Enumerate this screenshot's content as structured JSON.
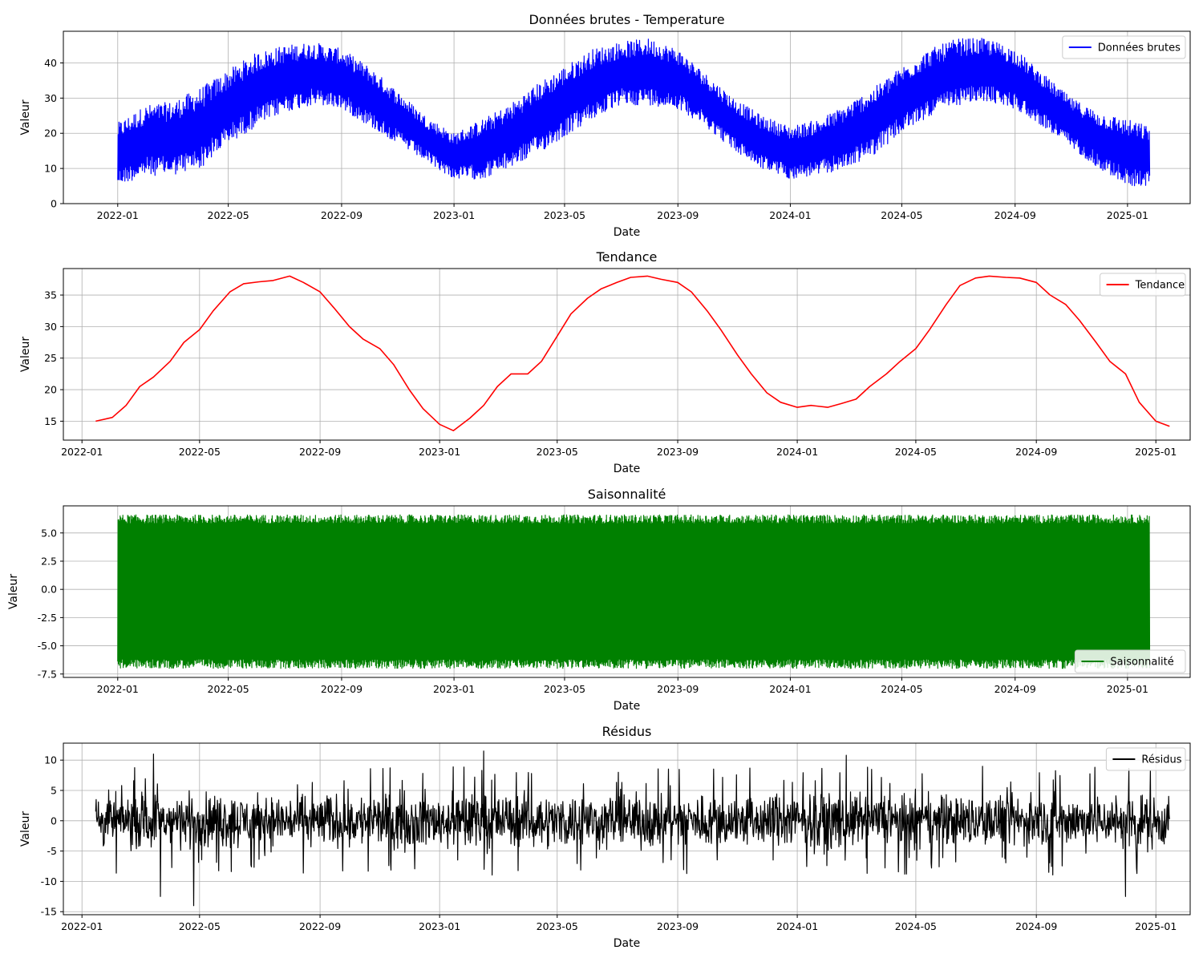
{
  "figure": {
    "background": "#ffffff",
    "grid_color": "#b0b0b0"
  },
  "chart_data": [
    {
      "type": "line",
      "title": "Données brutes - Temperature",
      "xlabel": "Date",
      "ylabel": "Valeur",
      "color": "#0000ff",
      "legend": {
        "label": "Données brutes",
        "placement": "top-right"
      },
      "grid": true,
      "xlim": [
        "2021-11-03",
        "2025-03-10"
      ],
      "ylim": [
        0,
        49
      ],
      "xticks": [
        "2022-01",
        "2022-05",
        "2022-09",
        "2023-01",
        "2023-05",
        "2023-09",
        "2024-01",
        "2024-05",
        "2024-09",
        "2025-01"
      ],
      "yticks": [
        0,
        10,
        20,
        30,
        40
      ],
      "envelope": {
        "dates": [
          "2022-01-01",
          "2022-02-01",
          "2022-03-01",
          "2022-04-01",
          "2022-05-01",
          "2022-06-01",
          "2022-07-01",
          "2022-08-01",
          "2022-09-01",
          "2022-10-01",
          "2022-11-01",
          "2022-12-01",
          "2023-01-01",
          "2023-02-01",
          "2023-03-01",
          "2023-04-01",
          "2023-05-01",
          "2023-06-01",
          "2023-07-01",
          "2023-08-01",
          "2023-09-01",
          "2023-10-01",
          "2023-11-01",
          "2023-12-01",
          "2024-01-01",
          "2024-02-01",
          "2024-03-01",
          "2024-04-01",
          "2024-05-01",
          "2024-06-01",
          "2024-07-01",
          "2024-08-01",
          "2024-09-01",
          "2024-10-01",
          "2024-11-01",
          "2024-12-01",
          "2025-01-01",
          "2025-01-25"
        ],
        "min": [
          5,
          8,
          8,
          10,
          17,
          22,
          26,
          28,
          27,
          22,
          17,
          12,
          7,
          7,
          10,
          14,
          19,
          24,
          28,
          28,
          27,
          22,
          15,
          10,
          7,
          8,
          10,
          14,
          20,
          25,
          28,
          29,
          27,
          22,
          16,
          10,
          5,
          5
        ],
        "max": [
          23,
          28,
          29,
          33,
          38,
          43,
          45,
          46,
          44,
          39,
          32,
          25,
          20,
          24,
          28,
          34,
          39,
          44,
          46,
          47,
          44,
          37,
          30,
          25,
          22,
          24,
          28,
          33,
          39,
          44,
          47,
          47,
          44,
          37,
          30,
          26,
          24,
          22
        ]
      }
    },
    {
      "type": "line",
      "title": "Tendance",
      "xlabel": "Date",
      "ylabel": "Valeur",
      "color": "#ff0000",
      "legend": {
        "label": "Tendance",
        "placement": "top-right"
      },
      "grid": true,
      "xlim": [
        "2021-12-13",
        "2025-02-05"
      ],
      "ylim": [
        12,
        39.2
      ],
      "xticks": [
        "2022-01",
        "2022-05",
        "2022-09",
        "2023-01",
        "2023-05",
        "2023-09",
        "2024-01",
        "2024-05",
        "2024-09",
        "2025-01"
      ],
      "yticks": [
        15,
        20,
        25,
        30,
        35
      ],
      "x": [
        "2022-01-15",
        "2022-02-01",
        "2022-02-15",
        "2022-03-01",
        "2022-03-15",
        "2022-04-01",
        "2022-04-15",
        "2022-05-01",
        "2022-05-15",
        "2022-06-01",
        "2022-06-15",
        "2022-07-01",
        "2022-07-15",
        "2022-08-01",
        "2022-08-15",
        "2022-09-01",
        "2022-09-15",
        "2022-10-01",
        "2022-10-15",
        "2022-11-01",
        "2022-11-15",
        "2022-12-01",
        "2022-12-15",
        "2023-01-01",
        "2023-01-15",
        "2023-02-01",
        "2023-02-15",
        "2023-03-01",
        "2023-03-15",
        "2023-04-01",
        "2023-04-15",
        "2023-05-01",
        "2023-05-15",
        "2023-06-01",
        "2023-06-15",
        "2023-07-01",
        "2023-07-15",
        "2023-08-01",
        "2023-08-15",
        "2023-09-01",
        "2023-09-15",
        "2023-10-01",
        "2023-10-15",
        "2023-11-01",
        "2023-11-15",
        "2023-12-01",
        "2023-12-15",
        "2024-01-01",
        "2024-01-15",
        "2024-02-01",
        "2024-02-15",
        "2024-03-01",
        "2024-03-15",
        "2024-04-01",
        "2024-04-15",
        "2024-05-01",
        "2024-05-15",
        "2024-06-01",
        "2024-06-15",
        "2024-07-01",
        "2024-07-15",
        "2024-08-01",
        "2024-08-15",
        "2024-09-01",
        "2024-09-15",
        "2024-10-01",
        "2024-10-15",
        "2024-11-01",
        "2024-11-15",
        "2024-12-01",
        "2024-12-15",
        "2025-01-01",
        "2025-01-15"
      ],
      "values": [
        15.0,
        15.6,
        17.5,
        20.5,
        22.0,
        24.5,
        27.5,
        29.5,
        32.5,
        35.5,
        36.8,
        37.1,
        37.3,
        38.0,
        37.0,
        35.5,
        33.0,
        30.0,
        28.0,
        26.5,
        24.0,
        20.0,
        17.0,
        14.5,
        13.5,
        15.5,
        17.5,
        20.5,
        22.5,
        22.5,
        24.5,
        28.5,
        32.0,
        34.5,
        36.0,
        37.0,
        37.8,
        38.0,
        37.5,
        37.0,
        35.5,
        32.5,
        29.5,
        25.5,
        22.5,
        19.5,
        18.0,
        17.2,
        17.5,
        17.2,
        17.8,
        18.5,
        20.5,
        22.5,
        24.5,
        26.5,
        29.5,
        33.5,
        36.5,
        37.7,
        38.0,
        37.8,
        37.7,
        37.0,
        35.0,
        33.5,
        31.0,
        27.5,
        24.5,
        22.5,
        18.0,
        15.0,
        14.2
      ]
    },
    {
      "type": "line",
      "title": "Saisonnalité",
      "xlabel": "Date",
      "ylabel": "Valeur",
      "color": "#008000",
      "legend": {
        "label": "Saisonnalité",
        "placement": "bottom-right"
      },
      "grid": true,
      "xlim": [
        "2021-11-03",
        "2025-03-10"
      ],
      "ylim": [
        -7.8,
        7.4
      ],
      "xticks": [
        "2022-01",
        "2022-05",
        "2022-09",
        "2023-01",
        "2023-05",
        "2023-09",
        "2024-01",
        "2024-05",
        "2024-09",
        "2025-01"
      ],
      "yticks": [
        -7.5,
        -5.0,
        -2.5,
        0.0,
        2.5,
        5.0
      ],
      "date_range": [
        "2022-01-01",
        "2025-01-25"
      ],
      "band_min": -7.0,
      "band_max": 6.6
    },
    {
      "type": "line",
      "title": "Résidus",
      "xlabel": "Date",
      "ylabel": "Valeur",
      "color": "#000000",
      "legend": {
        "label": "Résidus",
        "placement": "top-right"
      },
      "grid": true,
      "xlim": [
        "2021-12-13",
        "2025-02-05"
      ],
      "ylim": [
        -15.5,
        12.8
      ],
      "xticks": [
        "2022-01",
        "2022-05",
        "2022-09",
        "2023-01",
        "2023-05",
        "2023-09",
        "2024-01",
        "2024-05",
        "2024-09",
        "2025-01"
      ],
      "yticks": [
        -15,
        -10,
        -5,
        0,
        5,
        10
      ],
      "date_range": [
        "2022-01-15",
        "2025-01-15"
      ],
      "typical_range": [
        -5,
        5
      ],
      "extremes": [
        {
          "date": "2022-03-15",
          "value": 11
        },
        {
          "date": "2022-03-22",
          "value": -12.5
        },
        {
          "date": "2022-04-25",
          "value": -14
        },
        {
          "date": "2023-02-15",
          "value": 11.5
        },
        {
          "date": "2024-02-20",
          "value": 10.8
        },
        {
          "date": "2024-12-01",
          "value": -12.5
        }
      ]
    }
  ]
}
